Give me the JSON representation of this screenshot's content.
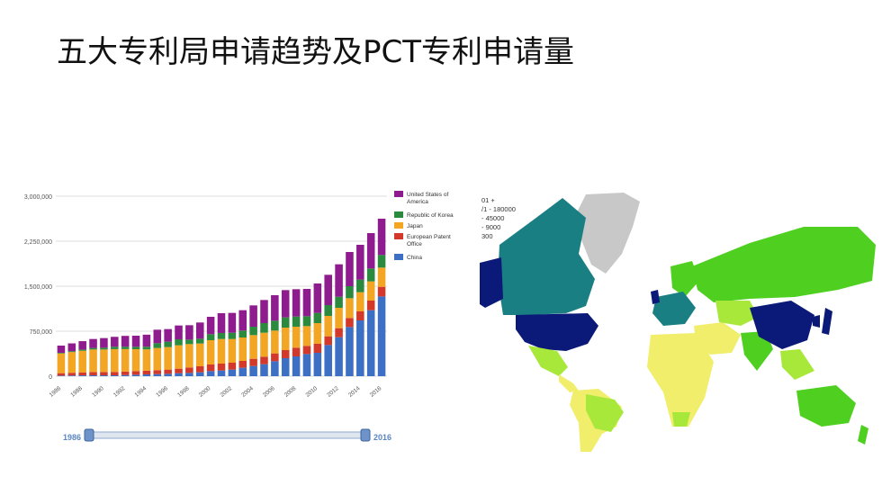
{
  "slide": {
    "title": "五大专利局申请趋势及PCT专利申请量"
  },
  "chart_data": {
    "type": "bar",
    "stacked": true,
    "categories": [
      "1986",
      "1987",
      "1988",
      "1989",
      "1990",
      "1991",
      "1992",
      "1993",
      "1994",
      "1995",
      "1996",
      "1997",
      "1998",
      "1999",
      "2000",
      "2001",
      "2002",
      "2003",
      "2004",
      "2005",
      "2006",
      "2007",
      "2008",
      "2009",
      "2010",
      "2011",
      "2012",
      "2013",
      "2014",
      "2015",
      "2016"
    ],
    "x_tick_labels": [
      "1986",
      "1988",
      "1990",
      "1992",
      "1994",
      "1996",
      "1998",
      "2000",
      "2002",
      "2004",
      "2006",
      "2008",
      "2010",
      "2012",
      "2014",
      "2016"
    ],
    "ylim": [
      0,
      3000000
    ],
    "y_tick_labels": [
      "0",
      "750,000",
      "1,500,000",
      "2,250,000",
      "3,000,000"
    ],
    "y_ticks": [
      0,
      750000,
      1500000,
      2250000,
      3000000
    ],
    "grid": true,
    "legend_position": "top-right",
    "series": [
      {
        "name": "China",
        "color": "#3d6fc4",
        "values": [
          10000,
          12000,
          14000,
          15000,
          15000,
          15000,
          20000,
          25000,
          30000,
          35000,
          40000,
          50000,
          55000,
          65000,
          85000,
          95000,
          110000,
          140000,
          170000,
          200000,
          250000,
          300000,
          330000,
          370000,
          390000,
          520000,
          650000,
          820000,
          930000,
          1100000,
          1330000
        ]
      },
      {
        "name": "European Patent Office",
        "color": "#d3392b",
        "values": [
          40000,
          45000,
          50000,
          55000,
          55000,
          56000,
          57000,
          60000,
          62000,
          65000,
          70000,
          75000,
          90000,
          100000,
          110000,
          115000,
          115000,
          115000,
          120000,
          125000,
          130000,
          135000,
          145000,
          135000,
          150000,
          145000,
          150000,
          150000,
          150000,
          160000,
          160000
        ]
      },
      {
        "name": "Japan",
        "color": "#f2a623",
        "values": [
          330000,
          345000,
          360000,
          375000,
          375000,
          380000,
          375000,
          365000,
          355000,
          370000,
          375000,
          390000,
          390000,
          380000,
          405000,
          410000,
          395000,
          390000,
          395000,
          400000,
          380000,
          375000,
          350000,
          330000,
          345000,
          340000,
          340000,
          330000,
          320000,
          320000,
          320000
        ]
      },
      {
        "name": "Republic of Korea",
        "color": "#2b8a3e",
        "values": [
          10000,
          15000,
          20000,
          25000,
          30000,
          40000,
          40000,
          40000,
          45000,
          80000,
          90000,
          100000,
          75000,
          80000,
          100000,
          100000,
          105000,
          115000,
          140000,
          160000,
          165000,
          170000,
          170000,
          165000,
          170000,
          180000,
          185000,
          200000,
          210000,
          215000,
          210000
        ]
      },
      {
        "name": "United States of America",
        "color": "#8e1c8e",
        "values": [
          120000,
          130000,
          140000,
          150000,
          160000,
          165000,
          180000,
          185000,
          200000,
          225000,
          210000,
          230000,
          240000,
          270000,
          290000,
          330000,
          330000,
          340000,
          355000,
          385000,
          425000,
          455000,
          455000,
          455000,
          490000,
          505000,
          540000,
          570000,
          580000,
          590000,
          605000
        ]
      }
    ]
  },
  "legend": {
    "items": [
      "United States of America",
      "Republic of Korea",
      "Japan",
      "European Patent Office",
      "China"
    ]
  },
  "range_slider": {
    "start_label": "1986",
    "end_label": "2016"
  },
  "map": {
    "legend_lines": [
      "01 +",
      "/1 - 180000",
      "- 45000",
      "- 9000",
      "300"
    ],
    "colors": {
      "very_high": "#0b1a78",
      "high": "#1a7f83",
      "medium": "#4fd020",
      "low_medium": "#a8e83a",
      "low": "#f0ee6a",
      "no_data": "#c8c8c8"
    }
  }
}
